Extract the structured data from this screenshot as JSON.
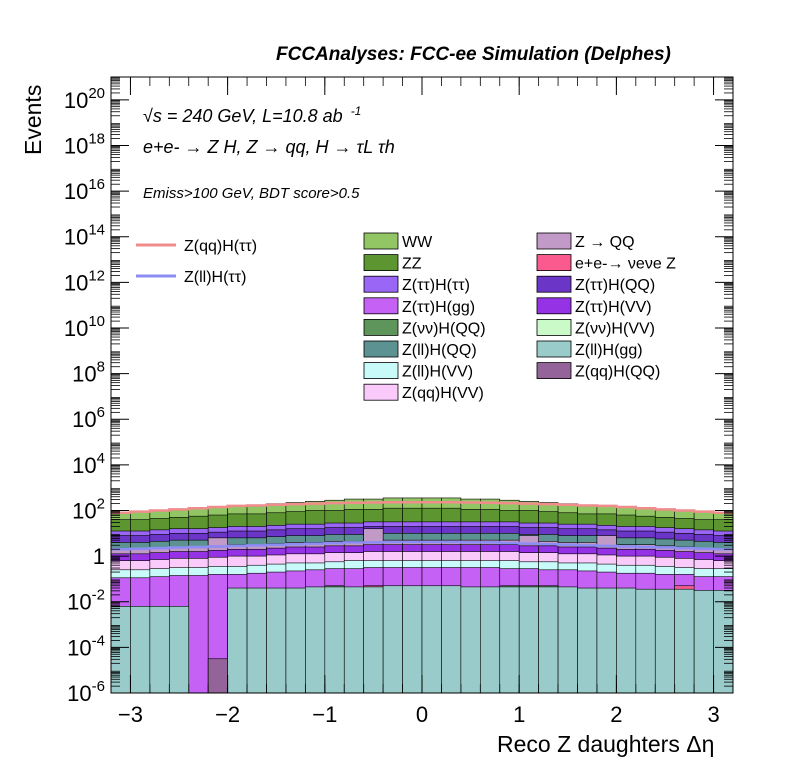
{
  "chart_data": {
    "type": "histogram-stacked",
    "title": "FCCAnalyses: FCC-ee Simulation (Delphes)",
    "xlabel": "Reco Z daughters Δη",
    "ylabel": "Events",
    "xlim": [
      -3.2,
      3.2
    ],
    "ylim": [
      1e-06,
      1e+21
    ],
    "log_y": true,
    "grid": false,
    "x_ticks": [
      -3,
      -2,
      -1,
      0,
      1,
      2,
      3
    ],
    "y_tick_exponents": [
      -6,
      -4,
      -2,
      0,
      2,
      4,
      6,
      8,
      10,
      12,
      14,
      16,
      18,
      20
    ],
    "y_tick_labels": [
      "10-6",
      "10-4",
      "10-2",
      "1",
      "102",
      "104",
      "106",
      "108",
      "1010",
      "1012",
      "1014",
      "1016",
      "1018",
      "1020"
    ],
    "annotations": {
      "sqrt_s": "√s = 240 GeV, L=10.8 ab",
      "sqrt_s_exp": "-1",
      "process": "e+e- → Z H, Z → qq, H → τL τh",
      "selection": "Emiss>100 GeV, BDT score>0.5"
    },
    "legend_lines": [
      {
        "name": "Z(qq)H(ττ)",
        "color": "#f08c8c"
      },
      {
        "name": "Z(ll)H(ττ)",
        "color": "#8c8cf5"
      }
    ],
    "legend_stack": [
      {
        "name": "WW",
        "color": "#92c665"
      },
      {
        "name": "Z → QQ",
        "color": "#c29ac8"
      },
      {
        "name": "ZZ",
        "color": "#5d9630"
      },
      {
        "name": "e+e-→ νeνe Z",
        "color": "#fb5a8e"
      },
      {
        "name": "Z(ττ)H(ττ)",
        "color": "#9a66f5"
      },
      {
        "name": "Z(ττ)H(QQ)",
        "color": "#6b35c8"
      },
      {
        "name": "Z(ττ)H(gg)",
        "color": "#c561f5"
      },
      {
        "name": "Z(ττ)H(VV)",
        "color": "#9532e6"
      },
      {
        "name": "Z(νν)H(QQ)",
        "color": "#5e955a"
      },
      {
        "name": "Z(νν)H(VV)",
        "color": "#cafac8"
      },
      {
        "name": "Z(ll)H(QQ)",
        "color": "#5c9392"
      },
      {
        "name": "Z(ll)H(gg)",
        "color": "#98cbc9"
      },
      {
        "name": "Z(ll)H(VV)",
        "color": "#c8fafa"
      },
      {
        "name": "Z(qq)H(QQ)",
        "color": "#93639a"
      },
      {
        "name": "Z(qq)H(VV)",
        "color": "#facafa"
      }
    ],
    "x_bins": {
      "min": -3.2,
      "max": 3.2,
      "n": 32
    },
    "stack_log10_tops": {
      "ZllHgg": [
        -2.2,
        -2.2,
        -2.2,
        -2.2,
        -6,
        -6,
        -1.4,
        -1.4,
        -1.4,
        -1.4,
        -1.35,
        -1.35,
        -1.35,
        -1.35,
        -1.3,
        -1.3,
        -1.3,
        -1.3,
        -1.35,
        -1.35,
        -1.35,
        -1.35,
        -1.35,
        -1.35,
        -1.4,
        -1.4,
        -1.4,
        -1.45,
        -1.45,
        -1.45,
        -1.5,
        -1.5
      ],
      "ZqqHQQ": [
        -6,
        -6,
        -6,
        -6,
        -6,
        -4.5,
        -6,
        -6,
        -6,
        -6,
        -6,
        -6,
        -6,
        -6,
        -6,
        -6,
        -6,
        -6,
        -6,
        -6,
        -6,
        -6,
        -6,
        -6,
        -6,
        -6,
        -6,
        -6,
        -6,
        -6,
        -6,
        -6
      ],
      "ZvvHQQ": [
        -6,
        -6,
        -6,
        -6,
        -6,
        -6,
        -6,
        -6,
        -6,
        -6,
        -6,
        -1.3,
        -6,
        -6,
        -6,
        -6,
        -6,
        -6,
        -6,
        -6,
        -1.3,
        -1.3,
        -1.3,
        -6,
        -6,
        -6,
        -6,
        -6,
        -6,
        -6,
        -6,
        -6
      ],
      "eeNuNuZ": [
        -6,
        -6,
        -6,
        -6,
        -6,
        -6,
        -6,
        -6,
        -6,
        -6,
        -6,
        -6,
        -6,
        -1.3,
        -6,
        -6,
        -6,
        -6,
        -6,
        -6,
        -6,
        -6,
        -6,
        -6,
        -6,
        -6,
        -6,
        -6,
        -6,
        -1.3,
        -6,
        -6
      ],
      "ZttHgg": [
        -0.95,
        -0.95,
        -0.9,
        -0.85,
        -0.85,
        -0.8,
        -0.8,
        -0.75,
        -0.7,
        -0.65,
        -0.6,
        -0.55,
        -0.55,
        -0.5,
        -0.5,
        -0.5,
        -0.5,
        -0.5,
        -0.5,
        -0.5,
        -0.55,
        -0.55,
        -0.6,
        -0.6,
        -0.65,
        -0.7,
        -0.75,
        -0.75,
        -0.8,
        -0.8,
        -0.9,
        -0.9
      ],
      "ZllHVV": [
        -0.6,
        -0.6,
        -0.55,
        -0.5,
        -0.5,
        -0.45,
        -0.45,
        -0.4,
        -0.35,
        -0.3,
        -0.3,
        -0.25,
        -0.2,
        -0.2,
        -0.2,
        -0.2,
        -0.2,
        -0.2,
        -0.2,
        -0.2,
        -0.2,
        -0.25,
        -0.25,
        -0.3,
        -0.3,
        -0.35,
        -0.4,
        -0.4,
        -0.45,
        -0.5,
        -0.55,
        -0.55
      ],
      "ZqqHVV": [
        -0.2,
        -0.2,
        -0.15,
        -0.1,
        -0.1,
        -0.05,
        0,
        0,
        0.05,
        0.1,
        0.1,
        0.15,
        0.15,
        0.2,
        0.2,
        0.2,
        0.2,
        0.2,
        0.2,
        0.2,
        0.2,
        0.15,
        0.15,
        0.1,
        0.1,
        0.05,
        0,
        0,
        -0.05,
        -0.1,
        -0.15,
        -0.2
      ],
      "ZttHVV": [
        0.1,
        0.1,
        0.15,
        0.2,
        0.2,
        0.25,
        0.3,
        0.3,
        0.35,
        0.4,
        0.4,
        0.45,
        0.45,
        0.5,
        0.5,
        0.5,
        0.5,
        0.5,
        0.5,
        0.5,
        0.5,
        0.45,
        0.45,
        0.4,
        0.4,
        0.35,
        0.3,
        0.3,
        0.25,
        0.2,
        0.15,
        0.1
      ],
      "ZQQ": [
        0.3,
        0.3,
        0.35,
        0.4,
        0.4,
        0.45,
        0.5,
        0.5,
        0.55,
        0.6,
        0.6,
        0.65,
        0.65,
        0.7,
        0.7,
        0.7,
        0.7,
        0.7,
        0.7,
        0.7,
        0.7,
        0.65,
        0.65,
        0.6,
        0.6,
        0.55,
        0.5,
        0.5,
        0.45,
        0.4,
        0.35,
        0.3
      ],
      "ZllHQQ": [
        0.6,
        0.6,
        0.65,
        0.7,
        0.7,
        0.75,
        0.8,
        0.8,
        0.85,
        0.9,
        0.9,
        0.95,
        0.95,
        1.0,
        1.0,
        1.0,
        1.0,
        1.0,
        1.0,
        1.0,
        1.0,
        0.95,
        0.95,
        0.9,
        0.9,
        0.85,
        0.8,
        0.8,
        0.75,
        0.7,
        0.65,
        0.6
      ],
      "ZttHQQ": [
        0.9,
        0.9,
        0.95,
        1.0,
        1.0,
        1.05,
        1.1,
        1.1,
        1.15,
        1.2,
        1.2,
        1.25,
        1.25,
        1.3,
        1.3,
        1.3,
        1.3,
        1.3,
        1.3,
        1.3,
        1.3,
        1.25,
        1.25,
        1.2,
        1.2,
        1.15,
        1.1,
        1.1,
        1.05,
        1.0,
        0.95,
        0.9
      ],
      "ZttHtt": [
        1.1,
        1.1,
        1.15,
        1.2,
        1.2,
        1.25,
        1.3,
        1.3,
        1.35,
        1.4,
        1.4,
        1.45,
        1.45,
        1.5,
        1.5,
        1.5,
        1.5,
        1.5,
        1.5,
        1.5,
        1.5,
        1.45,
        1.45,
        1.4,
        1.4,
        1.35,
        1.3,
        1.3,
        1.25,
        1.2,
        1.15,
        1.1
      ],
      "ZZ": [
        1.6,
        1.6,
        1.65,
        1.7,
        1.75,
        1.8,
        1.85,
        1.85,
        1.9,
        1.95,
        2.0,
        2.0,
        2.05,
        2.05,
        2.1,
        2.1,
        2.1,
        2.1,
        2.05,
        2.05,
        2.0,
        2.0,
        1.95,
        1.9,
        1.85,
        1.85,
        1.8,
        1.75,
        1.7,
        1.65,
        1.6,
        1.6
      ],
      "WW": [
        1.9,
        1.95,
        2.0,
        2.05,
        2.1,
        2.15,
        2.2,
        2.25,
        2.3,
        2.35,
        2.4,
        2.45,
        2.5,
        2.5,
        2.55,
        2.55,
        2.55,
        2.55,
        2.5,
        2.5,
        2.45,
        2.4,
        2.35,
        2.3,
        2.25,
        2.2,
        2.15,
        2.1,
        2.05,
        2.0,
        1.95,
        1.9
      ]
    },
    "ZQQ_spikes_log10": {
      "5": 0.8,
      "13": 1.2,
      "21": 0.9,
      "25": 0.9
    },
    "line_series_log10": {
      "ZqqHtt": [
        1.9,
        1.95,
        2.0,
        2.05,
        2.1,
        2.15,
        2.2,
        2.22,
        2.25,
        2.28,
        2.3,
        2.32,
        2.34,
        2.35,
        2.36,
        2.36,
        2.36,
        2.36,
        2.35,
        2.34,
        2.32,
        2.3,
        2.28,
        2.25,
        2.22,
        2.2,
        2.15,
        2.1,
        2.05,
        2.0,
        1.95,
        1.9
      ],
      "ZllHtt": [
        0.3,
        0.32,
        0.35,
        0.38,
        0.4,
        0.42,
        0.45,
        0.47,
        0.5,
        0.52,
        0.55,
        0.57,
        0.6,
        0.6,
        0.62,
        0.62,
        0.62,
        0.62,
        0.6,
        0.6,
        0.57,
        0.55,
        0.52,
        0.5,
        0.47,
        0.45,
        0.42,
        0.4,
        0.38,
        0.35,
        0.32,
        0.3
      ]
    }
  }
}
